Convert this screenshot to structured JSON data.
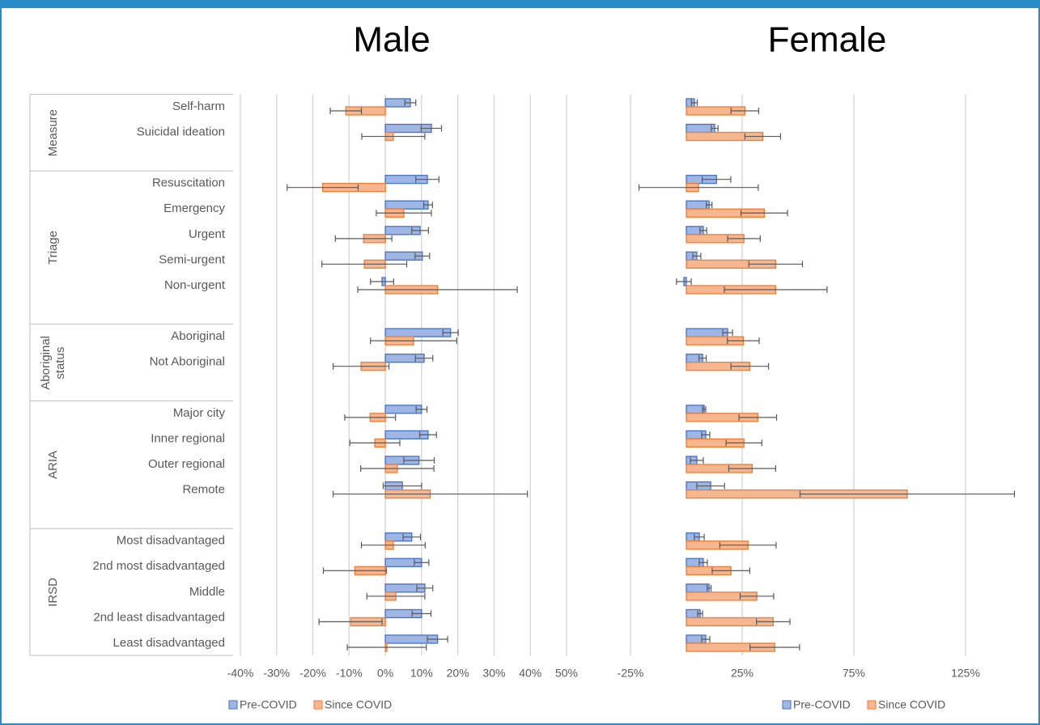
{
  "chart_data": {
    "type": "bar",
    "orientation": "horizontal",
    "groups": [
      {
        "label": "Measure",
        "categories": [
          "Self-harm",
          "Suicidal ideation"
        ]
      },
      {
        "label": "Triage",
        "categories": [
          "Resuscitation",
          "Emergency",
          "Urgent",
          "Semi-urgent",
          "Non-urgent"
        ]
      },
      {
        "label": "Aboriginal status",
        "categories": [
          "Aboriginal",
          "Not Aboriginal"
        ]
      },
      {
        "label": "ARIA",
        "categories": [
          "Major city",
          "Inner regional",
          "Outer regional",
          "Remote"
        ]
      },
      {
        "label": "IRSD",
        "categories": [
          "Most disadvantaged",
          "2nd most disadvantaged",
          "Middle",
          "2nd least disadvantaged",
          "Least disadvantaged"
        ]
      }
    ],
    "grid": true,
    "panels": [
      {
        "title": "Male",
        "xlim": [
          -40,
          50
        ],
        "xticks": [
          {
            "value": -40,
            "label": "-40%"
          },
          {
            "value": -30,
            "label": "-30%"
          },
          {
            "value": -20,
            "label": "-20%"
          },
          {
            "value": -10,
            "label": "-10%"
          },
          {
            "value": 0,
            "label": "0%"
          },
          {
            "value": 10,
            "label": "10%"
          },
          {
            "value": 20,
            "label": "20%"
          },
          {
            "value": 30,
            "label": "30%"
          },
          {
            "value": 40,
            "label": "40%"
          },
          {
            "value": 50,
            "label": "50%"
          }
        ],
        "series": [
          {
            "name": "Pre-COVID",
            "color": "#4472c4",
            "fill": "#9fb5e3",
            "values": [
              6.9,
              12.7,
              11.6,
              11.8,
              9.6,
              10.2,
              -0.9,
              18,
              10.7,
              10,
              11.8,
              9.3,
              4.7,
              7.3,
              10,
              10.9,
              10,
              14.4
            ],
            "errors": [
              1.5,
              2.8,
              3.2,
              1.2,
              2.3,
              2,
              3.2,
              2.1,
              2.4,
              1.5,
              2.3,
              4.2,
              5.3,
              2.4,
              2,
              2.2,
              2.6,
              2.8
            ]
          },
          {
            "name": "Since COVID",
            "color": "#ed7d31",
            "fill": "#f6b690",
            "values": [
              -10.9,
              2.2,
              -17.3,
              5.1,
              -6,
              -5.8,
              14.4,
              7.8,
              -6.7,
              -4.2,
              -2.9,
              3.3,
              12.4,
              2.2,
              -8.4,
              2.9,
              -9.6,
              0.4
            ],
            "errors": [
              4.3,
              8.7,
              9.8,
              7.6,
              7.8,
              11.7,
              22,
              11.9,
              7.7,
              7,
              6.9,
              10.1,
              26.8,
              8.8,
              8.7,
              8,
              8.7,
              10.9
            ]
          }
        ]
      },
      {
        "title": "Female",
        "xlim": [
          -25,
          150
        ],
        "xticks": [
          {
            "value": -25,
            "label": "-25%"
          },
          {
            "value": 25,
            "label": "25%"
          },
          {
            "value": 75,
            "label": "75%"
          },
          {
            "value": 125,
            "label": "125%"
          }
        ],
        "series": [
          {
            "name": "Pre-COVID",
            "color": "#4472c4",
            "fill": "#9fb5e3",
            "values": [
              3.6,
              12.7,
              13.5,
              10.2,
              7.6,
              4.7,
              -1.1,
              18.5,
              7.3,
              8,
              8.7,
              4.7,
              10.9,
              5.8,
              7.6,
              10.2,
              6.2,
              8.7
            ],
            "errors": [
              1.3,
              1.5,
              6.4,
              1.3,
              1.5,
              1.8,
              3.3,
              2.2,
              1.6,
              0.7,
              1.8,
              2.9,
              6.2,
              2.2,
              1.8,
              0.9,
              1.1,
              1.8
            ]
          },
          {
            "name": "Since COVID",
            "color": "#ed7d31",
            "fill": "#f6b690",
            "values": [
              26.2,
              34.2,
              5.5,
              34.9,
              25.8,
              40,
              40,
              25.5,
              28.4,
              32,
              25.8,
              29.5,
              98.9,
              27.6,
              20,
              31.6,
              38.9,
              39.6
            ],
            "errors": [
              6.2,
              8,
              26.7,
              10.4,
              7.3,
              12,
              23,
              7.1,
              8.4,
              8.4,
              8,
              10.5,
              48,
              12.6,
              8.4,
              7.5,
              7.5,
              11.1
            ]
          }
        ]
      }
    ]
  }
}
